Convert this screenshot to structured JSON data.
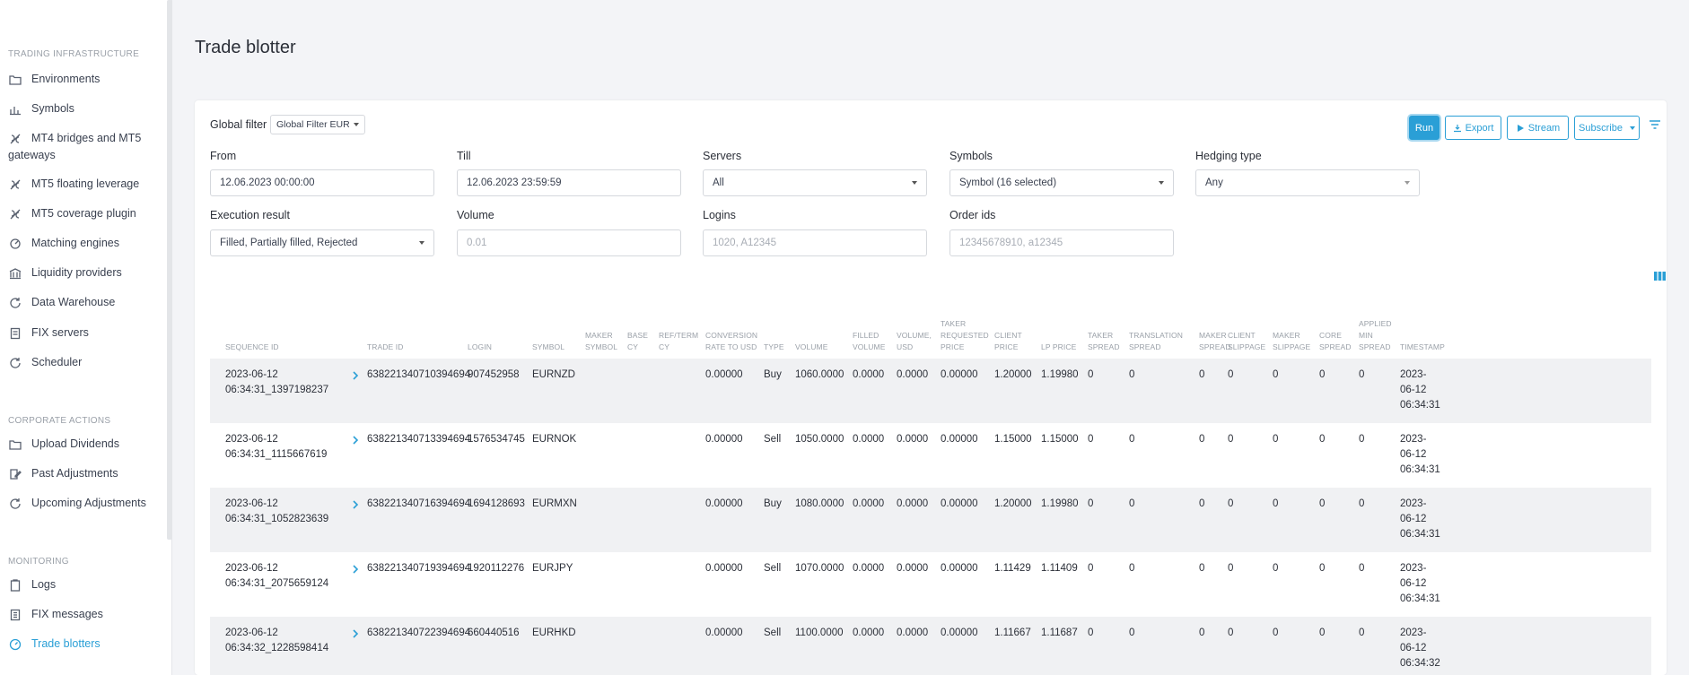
{
  "sidebar": {
    "sections": [
      {
        "title": "TRADING INFRASTRUCTURE"
      },
      {
        "title": "CORPORATE ACTIONS"
      },
      {
        "title": "MONITORING"
      }
    ],
    "items": [
      {
        "label": "Environments",
        "icon": "folder-icon"
      },
      {
        "label": "Symbols",
        "icon": "bar-chart-icon"
      },
      {
        "label": "MT4 bridges and MT5",
        "label2": "gateways",
        "icon": "bridge-icon"
      },
      {
        "label": "MT5 floating leverage",
        "icon": "bridge-icon"
      },
      {
        "label": "MT5 coverage plugin",
        "icon": "bridge-icon"
      },
      {
        "label": "Matching engines",
        "icon": "engine-icon"
      },
      {
        "label": "Liquidity providers",
        "icon": "bank-icon"
      },
      {
        "label": "Data Warehouse",
        "icon": "cycle-icon"
      },
      {
        "label": "FIX servers",
        "icon": "server-icon"
      },
      {
        "label": "Scheduler",
        "icon": "cycle-icon"
      },
      {
        "label": "Upload Dividends",
        "icon": "folder-icon"
      },
      {
        "label": "Past Adjustments",
        "icon": "edit-icon"
      },
      {
        "label": "Upcoming Adjustments",
        "icon": "cycle-icon"
      },
      {
        "label": "Logs",
        "icon": "clipboard-icon"
      },
      {
        "label": "FIX messages",
        "icon": "list-icon"
      },
      {
        "label": "Trade blotters",
        "icon": "gauge-icon",
        "active": true
      }
    ]
  },
  "page": {
    "title": "Trade blotter"
  },
  "toolbar": {
    "global_filter_label": "Global filter",
    "global_filter_value": "Global Filter EUR",
    "run": "Run",
    "export": "Export",
    "stream": "Stream",
    "subscribe": "Subscribe"
  },
  "filters": {
    "from": {
      "label": "From",
      "value": "12.06.2023 00:00:00"
    },
    "till": {
      "label": "Till",
      "value": "12.06.2023 23:59:59"
    },
    "servers": {
      "label": "Servers",
      "value": "All"
    },
    "symbols": {
      "label": "Symbols",
      "value": "Symbol (16 selected)"
    },
    "hedging": {
      "label": "Hedging type",
      "value": "Any"
    },
    "execution": {
      "label": "Execution result",
      "value": "Filled, Partially filled, Rejected"
    },
    "volume": {
      "label": "Volume",
      "placeholder": "0.01"
    },
    "logins": {
      "label": "Logins",
      "placeholder": "1020, A12345"
    },
    "order_ids": {
      "label": "Order ids",
      "placeholder": "12345678910, a12345"
    }
  },
  "table": {
    "columns": [
      [
        "SEQUENCE ID"
      ],
      [
        "TRADE ID"
      ],
      [
        "LOGIN"
      ],
      [
        "SYMBOL"
      ],
      [
        "MAKER",
        "SYMBOL"
      ],
      [
        "BASE",
        "CY"
      ],
      [
        "REF/TERM",
        "CY"
      ],
      [
        "CONVERSION",
        "RATE TO USD"
      ],
      [
        "TYPE"
      ],
      [
        "VOLUME"
      ],
      [
        "FILLED",
        "VOLUME"
      ],
      [
        "VOLUME,",
        "USD"
      ],
      [
        "TAKER",
        "REQUESTED",
        "PRICE"
      ],
      [
        "CLIENT",
        "PRICE"
      ],
      [
        "LP PRICE"
      ],
      [
        "TAKER",
        "SPREAD"
      ],
      [
        "TRANSLATION",
        "SPREAD"
      ],
      [
        "MAKER",
        "SPREAD"
      ],
      [
        "CLIENT",
        "SLIPPAGE"
      ],
      [
        "MAKER",
        "SLIPPAGE"
      ],
      [
        "CORE",
        "SPREAD"
      ],
      [
        "APPLIED",
        "MIN",
        "SPREAD"
      ],
      [
        "TIMESTAMP"
      ]
    ],
    "rows": [
      {
        "seq1": "2023-06-12",
        "seq2": "06:34:31_1397198237",
        "trade_id": "638221340710394694",
        "login": "907452958",
        "symbol": "EURNZD",
        "conv": "0.00000",
        "type": "Buy",
        "volume": "1060.0000",
        "filled": "0.0000",
        "vol_usd": "0.0000",
        "taker_price": "0.00000",
        "client_price": "1.20000",
        "lp_price": "1.19980",
        "taker_spread": "0",
        "transl_spread": "0",
        "maker_spread": "0",
        "client_slip": "0",
        "maker_slip": "0",
        "core_spread": "0",
        "min_spread": "0",
        "ts1": "2023-",
        "ts2": "06-12",
        "ts3": "06:34:31"
      },
      {
        "seq1": "2023-06-12",
        "seq2": "06:34:31_1115667619",
        "trade_id": "638221340713394694",
        "login": "1576534745",
        "symbol": "EURNOK",
        "conv": "0.00000",
        "type": "Sell",
        "volume": "1050.0000",
        "filled": "0.0000",
        "vol_usd": "0.0000",
        "taker_price": "0.00000",
        "client_price": "1.15000",
        "lp_price": "1.15000",
        "taker_spread": "0",
        "transl_spread": "0",
        "maker_spread": "0",
        "client_slip": "0",
        "maker_slip": "0",
        "core_spread": "0",
        "min_spread": "0",
        "ts1": "2023-",
        "ts2": "06-12",
        "ts3": "06:34:31"
      },
      {
        "seq1": "2023-06-12",
        "seq2": "06:34:31_1052823639",
        "trade_id": "638221340716394694",
        "login": "1694128693",
        "symbol": "EURMXN",
        "conv": "0.00000",
        "type": "Buy",
        "volume": "1080.0000",
        "filled": "0.0000",
        "vol_usd": "0.0000",
        "taker_price": "0.00000",
        "client_price": "1.20000",
        "lp_price": "1.19980",
        "taker_spread": "0",
        "transl_spread": "0",
        "maker_spread": "0",
        "client_slip": "0",
        "maker_slip": "0",
        "core_spread": "0",
        "min_spread": "0",
        "ts1": "2023-",
        "ts2": "06-12",
        "ts3": "06:34:31"
      },
      {
        "seq1": "2023-06-12",
        "seq2": "06:34:31_2075659124",
        "trade_id": "638221340719394694",
        "login": "1920112276",
        "symbol": "EURJPY",
        "conv": "0.00000",
        "type": "Sell",
        "volume": "1070.0000",
        "filled": "0.0000",
        "vol_usd": "0.0000",
        "taker_price": "0.00000",
        "client_price": "1.11429",
        "lp_price": "1.11409",
        "taker_spread": "0",
        "transl_spread": "0",
        "maker_spread": "0",
        "client_slip": "0",
        "maker_slip": "0",
        "core_spread": "0",
        "min_spread": "0",
        "ts1": "2023-",
        "ts2": "06-12",
        "ts3": "06:34:31"
      },
      {
        "seq1": "2023-06-12",
        "seq2": "06:34:32_1228598414",
        "trade_id": "638221340722394694",
        "login": "660440516",
        "symbol": "EURHKD",
        "conv": "0.00000",
        "type": "Sell",
        "volume": "1100.0000",
        "filled": "0.0000",
        "vol_usd": "0.0000",
        "taker_price": "0.00000",
        "client_price": "1.11667",
        "lp_price": "1.11687",
        "taker_spread": "0",
        "transl_spread": "0",
        "maker_spread": "0",
        "client_slip": "0",
        "maker_slip": "0",
        "core_spread": "0",
        "min_spread": "0",
        "ts1": "2023-",
        "ts2": "06-12",
        "ts3": "06:34:32"
      }
    ]
  }
}
